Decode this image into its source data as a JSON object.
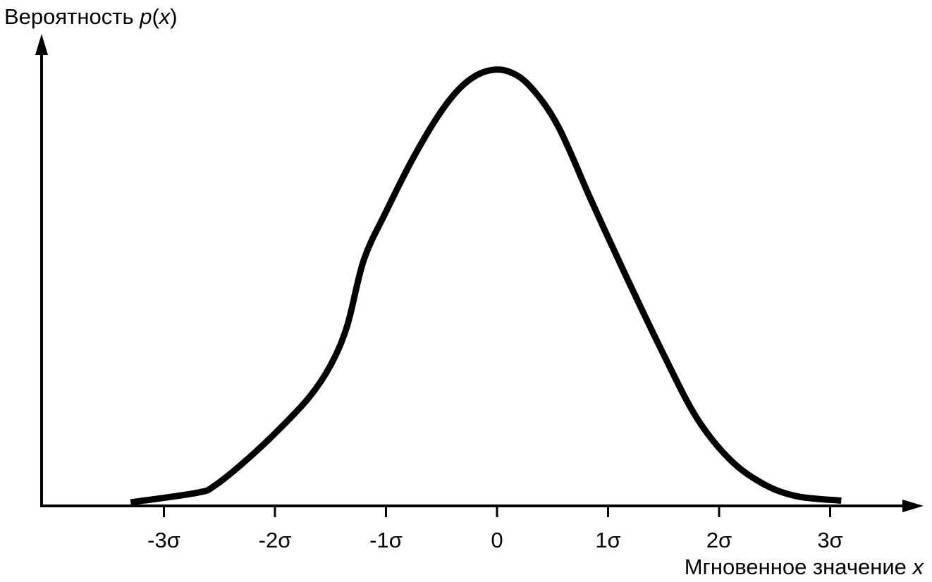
{
  "chart_data": {
    "type": "line",
    "title": "",
    "ylabel": {
      "prefix": "Вероятность ",
      "func": "p",
      "paren_open": "(",
      "var": "x",
      "paren_close": ")"
    },
    "xlabel": {
      "text": "Мгновенное значение ",
      "var": "x"
    },
    "x_ticks": [
      {
        "value": -3,
        "label": "-3σ"
      },
      {
        "value": -2,
        "label": "-2σ"
      },
      {
        "value": -1,
        "label": "-1σ"
      },
      {
        "value": 0,
        "label": "0"
      },
      {
        "value": 1,
        "label": "1σ"
      },
      {
        "value": 2,
        "label": "2σ"
      },
      {
        "value": 3,
        "label": "3σ"
      }
    ],
    "xlim": [
      -4.0,
      3.7
    ],
    "ylim": [
      0,
      1.0
    ],
    "series": [
      {
        "x": [
          -3.3,
          -2.7,
          -2.55,
          -2.3,
          -2.0,
          -1.7,
          -1.5,
          -1.35,
          -1.2,
          -1.0,
          -0.75,
          -0.5,
          -0.3,
          -0.1,
          0.1,
          0.3,
          0.55,
          0.85,
          1.15,
          1.5,
          1.8,
          2.1,
          2.4,
          2.7,
          3.1
        ],
        "y": [
          0.008,
          0.03,
          0.045,
          0.095,
          0.165,
          0.245,
          0.32,
          0.41,
          0.56,
          0.67,
          0.795,
          0.9,
          0.96,
          0.99,
          0.99,
          0.955,
          0.865,
          0.695,
          0.53,
          0.345,
          0.2,
          0.105,
          0.05,
          0.022,
          0.012
        ]
      }
    ],
    "grid": false,
    "legend": "none",
    "colors": {
      "curve": "#000000",
      "axis": "#000000"
    }
  }
}
